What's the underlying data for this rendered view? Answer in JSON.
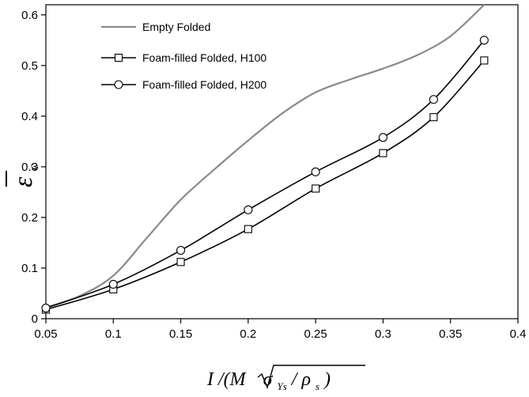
{
  "chart_data": {
    "type": "line",
    "xlim": [
      0.05,
      0.4
    ],
    "ylim": [
      0,
      0.62
    ],
    "x_ticks": [
      "0.05",
      "0.1",
      "0.15",
      "0.2",
      "0.25",
      "0.3",
      "0.35",
      "0.4"
    ],
    "y_ticks": [
      "0",
      "0.1",
      "0.2",
      "0.3",
      "0.4",
      "0.5",
      "0.6"
    ],
    "xlabel": {
      "main": "I /(M ",
      "sqrt_content": "σ",
      "sub1": "Ys",
      "slash": " / ρ",
      "sub2": "s",
      "close": " )"
    },
    "ylabel": {
      "symbol": "ε",
      "sub": "c"
    },
    "grid": false,
    "legend_placement": "top-left",
    "series": [
      {
        "name": "Empty Folded",
        "color": "#8a8a8a",
        "marker": "none",
        "points": [
          [
            0.05,
            0.022
          ],
          [
            0.075,
            0.045
          ],
          [
            0.1,
            0.085
          ],
          [
            0.125,
            0.16
          ],
          [
            0.15,
            0.235
          ],
          [
            0.175,
            0.295
          ],
          [
            0.2,
            0.352
          ],
          [
            0.225,
            0.405
          ],
          [
            0.25,
            0.447
          ],
          [
            0.275,
            0.472
          ],
          [
            0.3,
            0.494
          ],
          [
            0.325,
            0.52
          ],
          [
            0.35,
            0.558
          ],
          [
            0.375,
            0.62
          ]
        ]
      },
      {
        "name": "Foam-filled Folded, H100",
        "color": "#000000",
        "marker": "square",
        "points": [
          [
            0.05,
            0.018
          ],
          [
            0.1,
            0.058
          ],
          [
            0.15,
            0.112
          ],
          [
            0.2,
            0.177
          ],
          [
            0.25,
            0.257
          ],
          [
            0.3,
            0.327
          ],
          [
            0.3375,
            0.398
          ],
          [
            0.375,
            0.51
          ]
        ]
      },
      {
        "name": "Foam-filled Folded, H200",
        "color": "#000000",
        "marker": "circle",
        "points": [
          [
            0.05,
            0.021
          ],
          [
            0.1,
            0.068
          ],
          [
            0.15,
            0.135
          ],
          [
            0.2,
            0.215
          ],
          [
            0.25,
            0.29
          ],
          [
            0.3,
            0.358
          ],
          [
            0.3375,
            0.433
          ],
          [
            0.375,
            0.55
          ]
        ]
      }
    ]
  }
}
